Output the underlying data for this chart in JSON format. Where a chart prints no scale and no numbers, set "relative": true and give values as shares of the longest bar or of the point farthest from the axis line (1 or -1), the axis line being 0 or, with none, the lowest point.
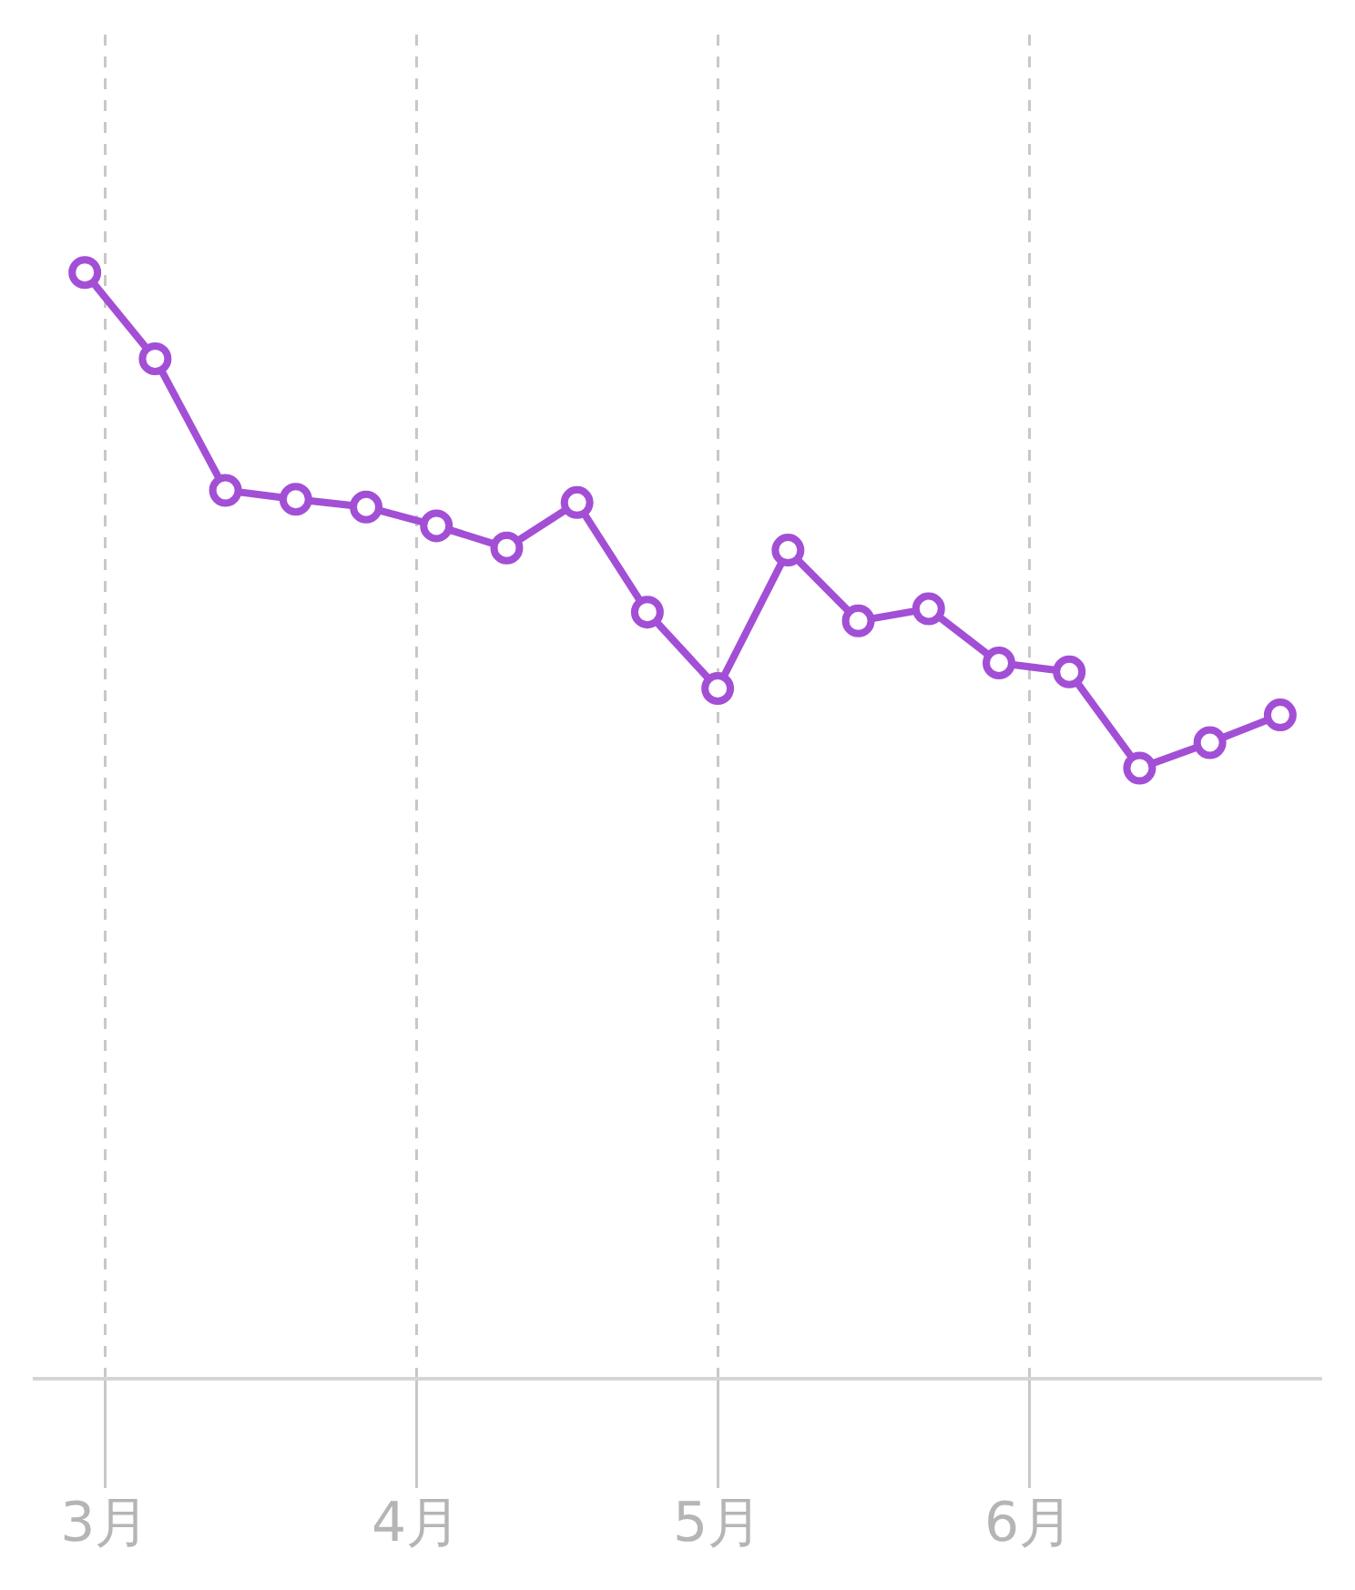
{
  "chart_data": {
    "type": "line",
    "relative": true,
    "x": [
      "--02-27",
      "--03-06",
      "--03-13",
      "--03-20",
      "--03-27",
      "--04-03",
      "--04-10",
      "--04-17",
      "--04-24",
      "--05-01",
      "--05-08",
      "--05-15",
      "--05-22",
      "--05-29",
      "--06-05",
      "--06-12",
      "--06-19",
      "--06-26"
    ],
    "series": [
      {
        "color": "#a24fd6",
        "values": [
          1.0,
          0.922,
          0.803,
          0.795,
          0.788,
          0.771,
          0.751,
          0.792,
          0.693,
          0.624,
          0.749,
          0.685,
          0.696,
          0.647,
          0.639,
          0.552,
          0.575,
          0.6
        ]
      }
    ],
    "xlim": [
      "--02-22",
      "--06-30"
    ],
    "xticks": [
      {
        "value": "--03-01",
        "label": "3月"
      },
      {
        "value": "--04-01",
        "label": "4月"
      },
      {
        "value": "--05-01",
        "label": "5月"
      },
      {
        "value": "--06-01",
        "label": "6月"
      }
    ],
    "grid": "x",
    "marker": "circle",
    "line_style": "solid"
  }
}
